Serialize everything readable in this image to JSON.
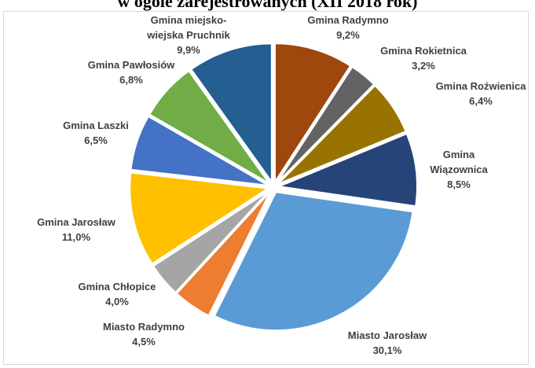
{
  "chart_data": {
    "type": "pie",
    "title": "w ogóle zarejestrowanych (XII 2018 rok)",
    "categories": [
      "Gmina Radymno",
      "Gmina Rokietnica",
      "Gmina Roźwienica",
      "Gmina Wiązownica",
      "Miasto Jarosław",
      "Miasto Radymno",
      "Gmina Chłopice",
      "Gmina Jarosław",
      "Gmina Laszki",
      "Gmina Pawłosiów",
      "Gmina miejsko-wiejska Pruchnik"
    ],
    "values": [
      9.2,
      3.2,
      6.4,
      8.5,
      30.1,
      4.5,
      4.0,
      11.0,
      6.5,
      6.8,
      9.9
    ],
    "value_labels": [
      "9,2%",
      "3,2%",
      "6,4%",
      "8,5%",
      "30,1%",
      "4,5%",
      "4,0%",
      "11,0%",
      "6,5%",
      "6,8%",
      "9,9%"
    ],
    "label_lines": [
      [
        "Gmina Radymno"
      ],
      [
        "Gmina Rokietnica"
      ],
      [
        "Gmina Roźwienica"
      ],
      [
        "Gmina",
        "Wiązownica"
      ],
      [
        "Miasto Jarosław"
      ],
      [
        "Miasto Radymno"
      ],
      [
        "Gmina Chłopice"
      ],
      [
        "Gmina Jarosław"
      ],
      [
        "Gmina Laszki"
      ],
      [
        "Gmina Pawłosiów"
      ],
      [
        "Gmina miejsko-",
        "wiejska Pruchnik"
      ]
    ],
    "colors": [
      "#9e480e",
      "#636363",
      "#997300",
      "#264478",
      "#5b9bd5",
      "#ed7d31",
      "#a5a5a5",
      "#ffc000",
      "#4472c4",
      "#70ad47",
      "#255e91"
    ],
    "exploded": true,
    "legend": "none"
  }
}
